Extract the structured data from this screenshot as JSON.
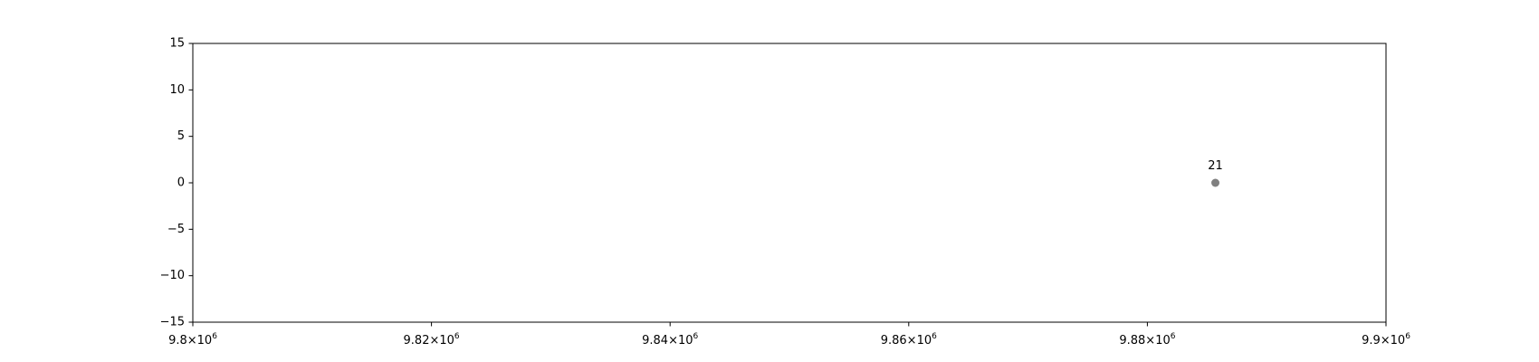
{
  "chart_data": {
    "type": "scatter",
    "title": "",
    "xlabel": "",
    "ylabel": "",
    "xlim": [
      9800000,
      9900000
    ],
    "ylim": [
      -15,
      15
    ],
    "x_ticks": [
      {
        "value": 9800000,
        "mantissa": "9.8",
        "base": "10",
        "exponent": "6"
      },
      {
        "value": 9820000,
        "mantissa": "9.82",
        "base": "10",
        "exponent": "6"
      },
      {
        "value": 9840000,
        "mantissa": "9.84",
        "base": "10",
        "exponent": "6"
      },
      {
        "value": 9860000,
        "mantissa": "9.86",
        "base": "10",
        "exponent": "6"
      },
      {
        "value": 9880000,
        "mantissa": "9.88",
        "base": "10",
        "exponent": "6"
      },
      {
        "value": 9900000,
        "mantissa": "9.9",
        "base": "10",
        "exponent": "6"
      }
    ],
    "y_ticks": [
      {
        "value": 15,
        "label": "15"
      },
      {
        "value": 10,
        "label": "10"
      },
      {
        "value": 5,
        "label": "5"
      },
      {
        "value": 0,
        "label": "0"
      },
      {
        "value": -5,
        "label": "−5"
      },
      {
        "value": -10,
        "label": "−10"
      },
      {
        "value": -15,
        "label": "−15"
      }
    ],
    "grid": false,
    "points": [
      {
        "x": 9885700,
        "y": 0,
        "label": "21",
        "color": "#808080"
      }
    ]
  }
}
